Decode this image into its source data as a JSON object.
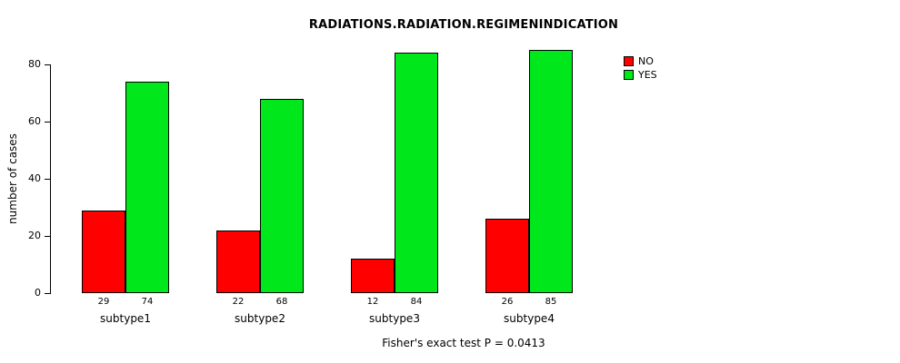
{
  "title": "RADIATIONS.RADIATION.REGIMENINDICATION",
  "caption": "Fisher's exact test P = 0.0413",
  "chart_data": {
    "type": "bar",
    "title": "RADIATIONS.RADIATION.REGIMENINDICATION",
    "categories": [
      "subtype1",
      "subtype2",
      "subtype3",
      "subtype4"
    ],
    "series": [
      {
        "name": "NO",
        "color": "#FF0000",
        "values": [
          29,
          22,
          12,
          26
        ]
      },
      {
        "name": "YES",
        "color": "#00E81C",
        "values": [
          74,
          68,
          84,
          85
        ]
      }
    ],
    "xlabel": "",
    "ylabel": "number of cases",
    "ylim": [
      0,
      80
    ],
    "yticks": [
      0,
      20,
      40,
      60,
      80
    ],
    "grid": false,
    "legend_position": "top-right",
    "bar_value_labels": true,
    "annotation": "Fisher's exact test P = 0.0413"
  }
}
